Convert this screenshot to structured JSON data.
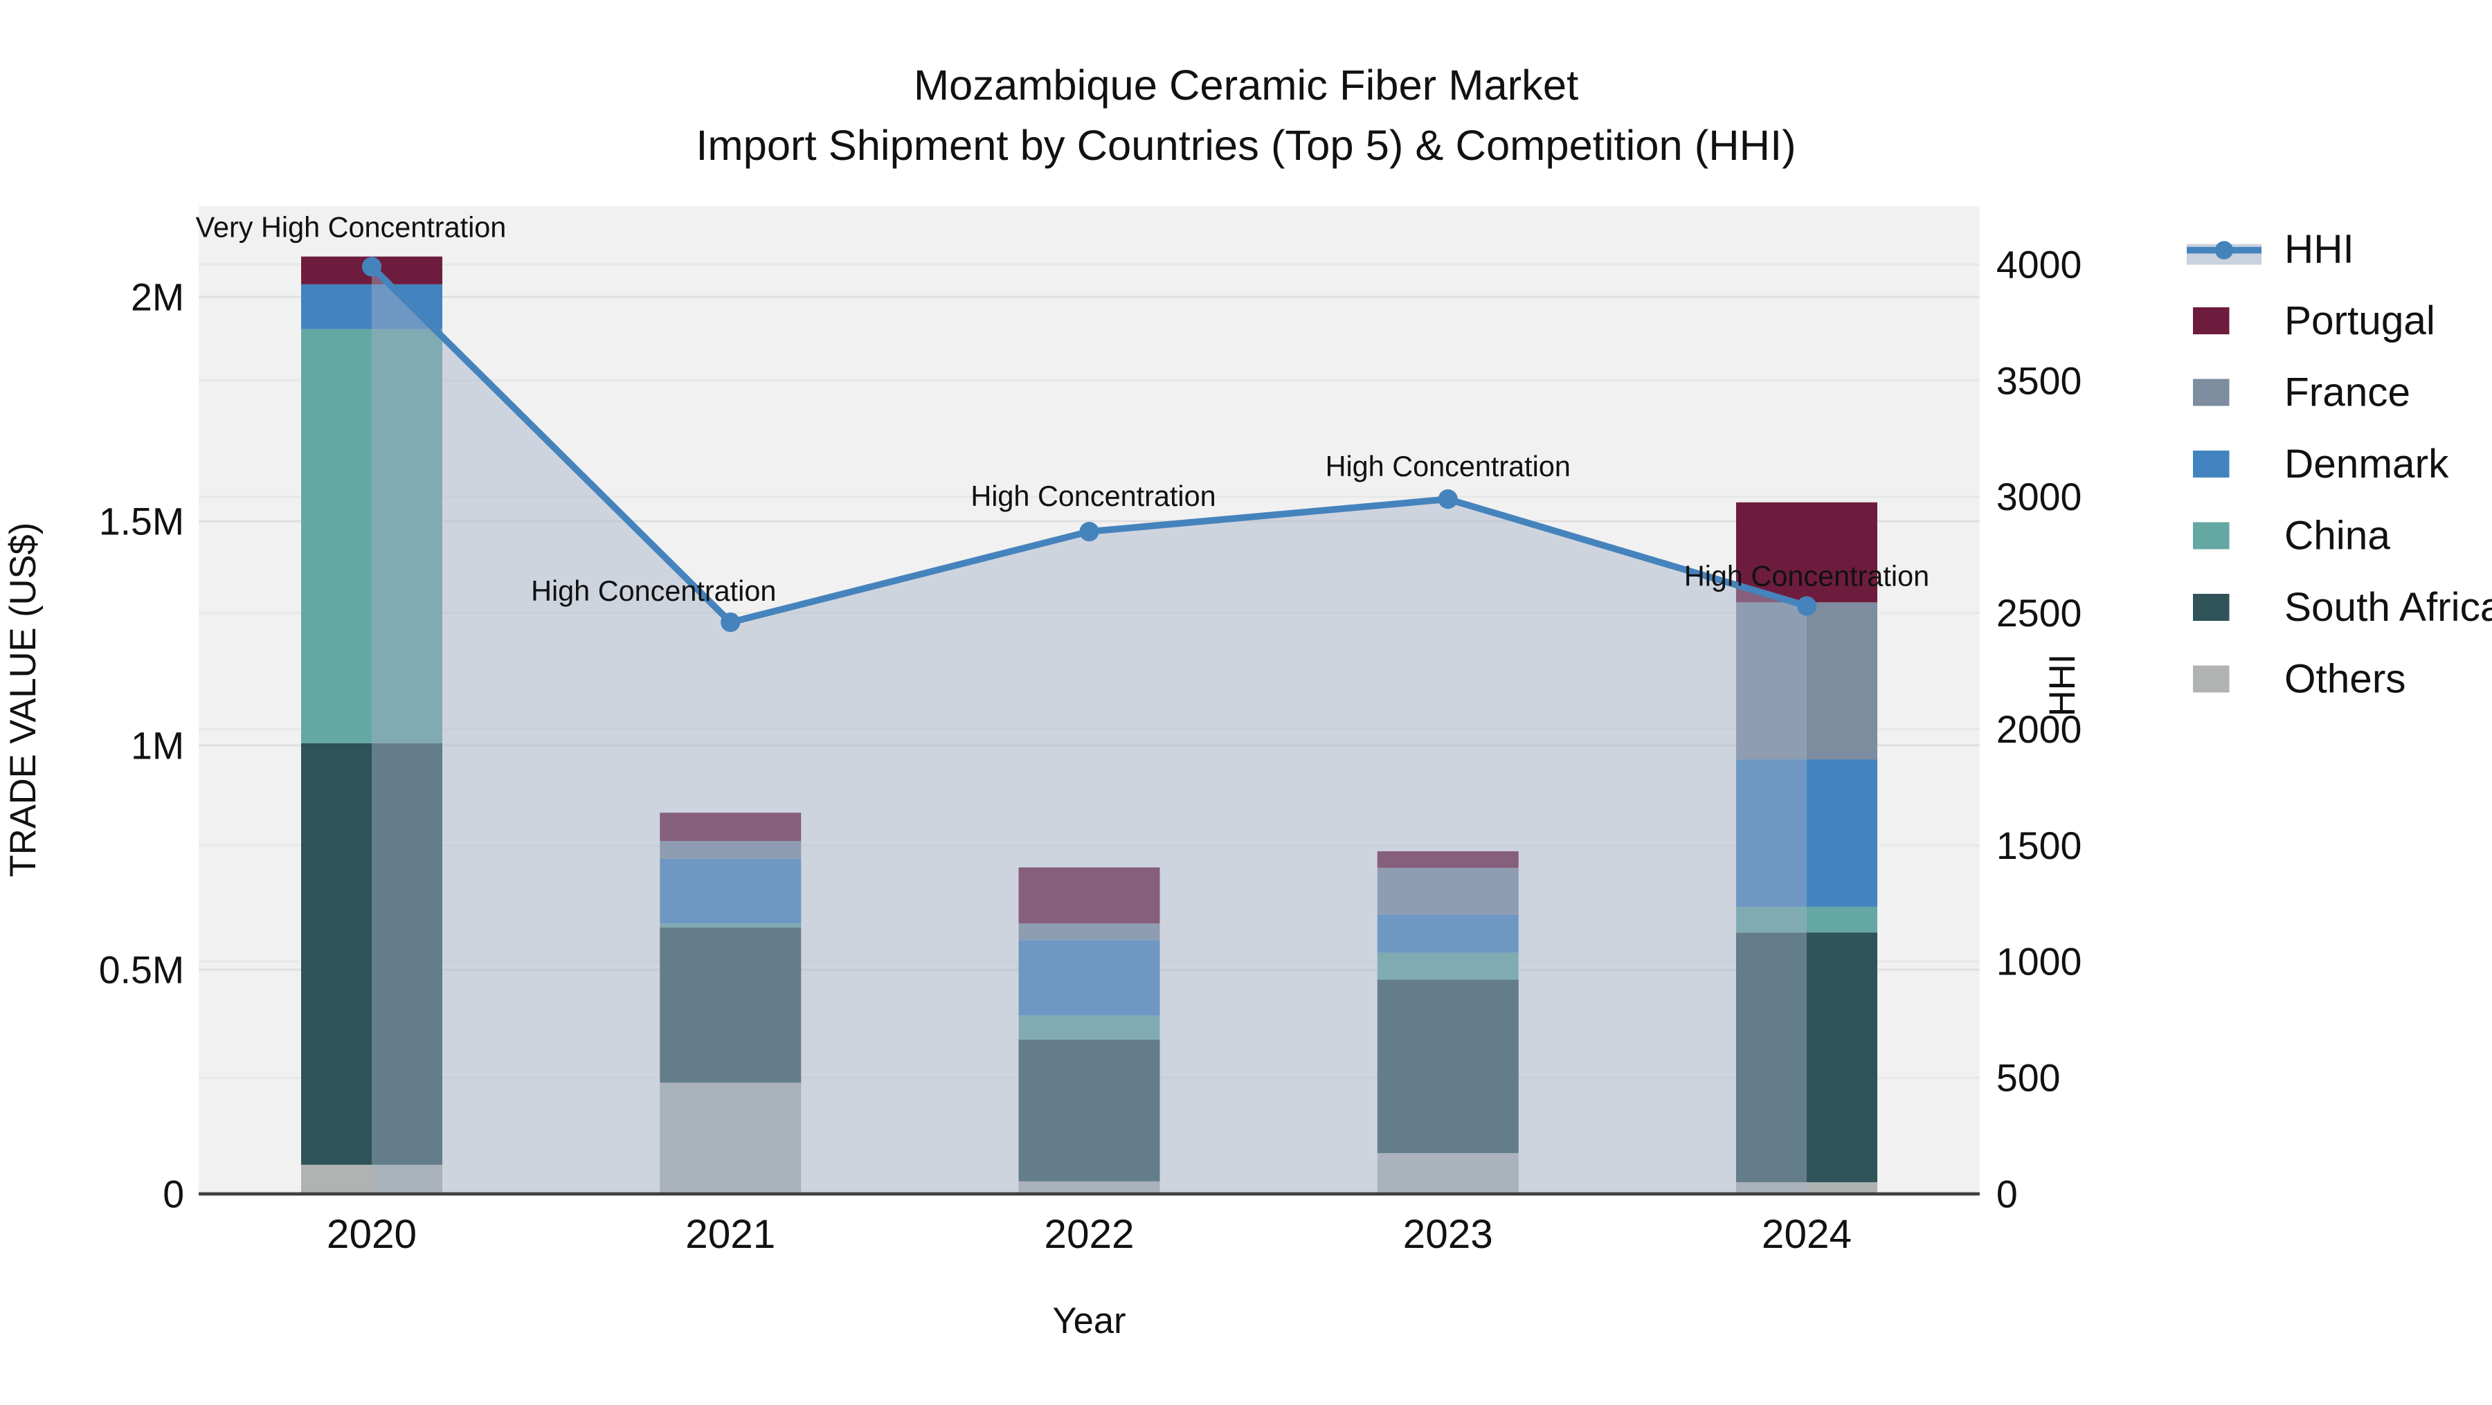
{
  "title": {
    "line1": "Mozambique Ceramic Fiber Market",
    "line2": "Import Shipment by Countries (Top 5) & Competition (HHI)"
  },
  "axes": {
    "left": {
      "title": "TRADE VALUE (US$)",
      "ticks": [
        {
          "label": "0",
          "value": 0
        },
        {
          "label": "0.5M",
          "value": 500000
        },
        {
          "label": "1M",
          "value": 1000000
        },
        {
          "label": "1.5M",
          "value": 1500000
        },
        {
          "label": "2M",
          "value": 2000000
        }
      ]
    },
    "right": {
      "title": "HHI",
      "ticks": [
        {
          "label": "0",
          "value": 0
        },
        {
          "label": "500",
          "value": 500
        },
        {
          "label": "1000",
          "value": 1000
        },
        {
          "label": "1500",
          "value": 1500
        },
        {
          "label": "2000",
          "value": 2000
        },
        {
          "label": "2500",
          "value": 2500
        },
        {
          "label": "3000",
          "value": 3000
        },
        {
          "label": "3500",
          "value": 3500
        },
        {
          "label": "4000",
          "value": 4000
        }
      ]
    },
    "x": {
      "title": "Year"
    }
  },
  "legend": {
    "items": [
      {
        "label": "HHI",
        "type": "line",
        "color": "#4583bd",
        "band": "#c9d2de"
      },
      {
        "label": "Portugal",
        "type": "swatch",
        "color": "#6e1c3e"
      },
      {
        "label": "France",
        "type": "swatch",
        "color": "#7d8c9e"
      },
      {
        "label": "Denmark",
        "type": "swatch",
        "color": "#4384c0"
      },
      {
        "label": "China",
        "type": "swatch",
        "color": "#65a7a2"
      },
      {
        "label": "South Africa",
        "type": "swatch",
        "color": "#2f5358"
      },
      {
        "label": "Others",
        "type": "swatch",
        "color": "#b0b3b2"
      }
    ]
  },
  "chart_data": {
    "type": "bar+line",
    "categories": [
      "2020",
      "2021",
      "2022",
      "2023",
      "2024"
    ],
    "stack_order_note": "bars stacked bottom-to-top in listed series order",
    "series": [
      {
        "name": "Others",
        "color": "#b0b3b2",
        "values": [
          65000,
          248000,
          28000,
          91000,
          26000
        ]
      },
      {
        "name": "South Africa",
        "color": "#2f5358",
        "values": [
          940000,
          346000,
          316000,
          387000,
          557000
        ]
      },
      {
        "name": "China",
        "color": "#65a7a2",
        "values": [
          923000,
          9000,
          54000,
          60000,
          57000
        ]
      },
      {
        "name": "Denmark",
        "color": "#4384c0",
        "values": [
          100000,
          144000,
          168000,
          85000,
          329000
        ]
      },
      {
        "name": "France",
        "color": "#7d8c9e",
        "values": [
          0,
          40000,
          37000,
          104000,
          350000
        ]
      },
      {
        "name": "Portugal",
        "color": "#6e1c3e",
        "values": [
          62000,
          63000,
          125000,
          37000,
          223000
        ]
      }
    ],
    "line_series": {
      "name": "HHI",
      "color": "#4583bd",
      "fill_color": "rgba(163,178,199,0.45)",
      "values": [
        3990,
        2460,
        2850,
        2990,
        2530
      ]
    },
    "annotations": [
      {
        "year": "2020",
        "text": "Very High Concentration"
      },
      {
        "year": "2021",
        "text": "High Concentration"
      },
      {
        "year": "2022",
        "text": "High Concentration"
      },
      {
        "year": "2023",
        "text": "High Concentration"
      },
      {
        "year": "2024",
        "text": "High Concentration"
      }
    ],
    "xlabel": "Year",
    "ylabel_left": "TRADE VALUE (US$)",
    "ylabel_right": "HHI",
    "ylim_left": [
      0,
      2200000
    ],
    "ylim_right": [
      0,
      4250
    ],
    "grid": true,
    "legend_position": "right",
    "plot_bg": "#f1f1f1"
  }
}
